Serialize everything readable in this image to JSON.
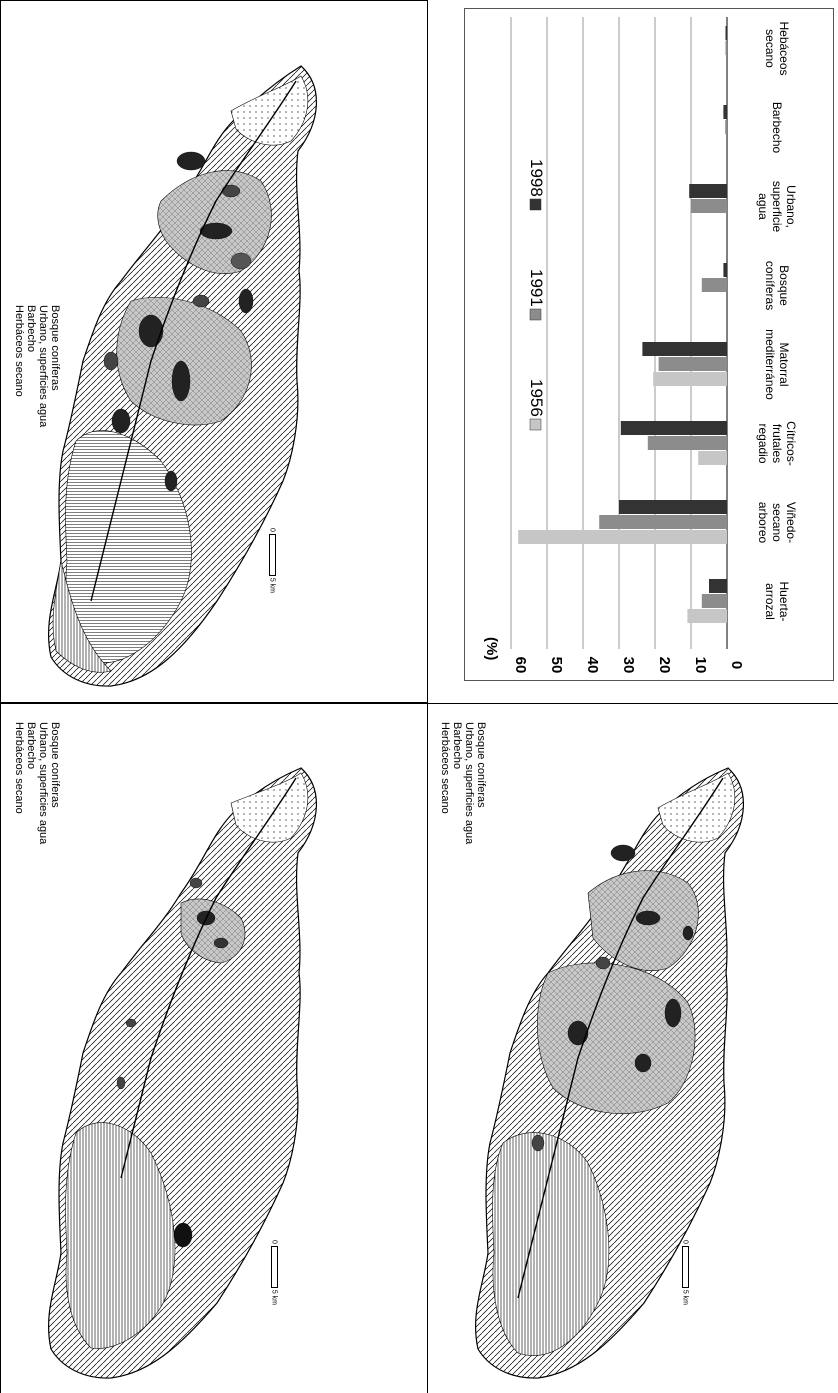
{
  "maps": [
    {
      "id": "map-top",
      "legend": [
        "Bosque coníferas",
        "Urbano, superficies agua",
        "Barbecho",
        "Herbáceos secano"
      ],
      "scale": {
        "zero": "0",
        "five": "5",
        "unit": "km"
      }
    },
    {
      "id": "map-bottom-left",
      "legend": [
        "Bosque coníferas",
        "Urbano, superficies agua",
        "Barbecho",
        "Herbáceos secano"
      ],
      "scale": {
        "zero": "0",
        "five": "5",
        "unit": "km"
      }
    },
    {
      "id": "map-bottom-right",
      "legend": [
        "Bosque coníferas",
        "Urbano, superficies agua",
        "Barbecho",
        "Herbáceos secano"
      ],
      "scale": {
        "zero": "0",
        "five": "5",
        "unit": "km"
      }
    }
  ],
  "chart_data": {
    "type": "bar",
    "orientation": "rotated-90",
    "ylabel": "(%)",
    "ylim": [
      0,
      60
    ],
    "yticks": [
      0,
      10,
      20,
      30,
      40,
      50,
      60
    ],
    "grid": true,
    "legend_placement": "top",
    "categories": [
      [
        "Huerta-",
        "arrozal"
      ],
      [
        "Viñedo-",
        "secano",
        "arboreo"
      ],
      [
        "Cítricos-",
        "frutales",
        "regadio"
      ],
      [
        "Matorral",
        "mediterráneo"
      ],
      [
        "Bosque",
        "coníferas"
      ],
      [
        "Urbano,",
        "superficie",
        "agua"
      ],
      [
        "Barbecho"
      ],
      [
        "Hebáceos",
        "secano"
      ]
    ],
    "series": [
      {
        "name": "1956",
        "color": "#c6c6c6",
        "values": [
          11,
          58,
          8,
          20.5,
          0,
          0,
          0,
          0
        ]
      },
      {
        "name": "1991",
        "color": "#8c8c8c",
        "values": [
          7,
          35.5,
          22,
          19,
          7,
          10,
          0.5,
          0.3
        ]
      },
      {
        "name": "1998",
        "color": "#333333",
        "values": [
          5,
          30,
          29.5,
          23.5,
          1,
          10.5,
          1,
          0.2
        ]
      }
    ]
  }
}
